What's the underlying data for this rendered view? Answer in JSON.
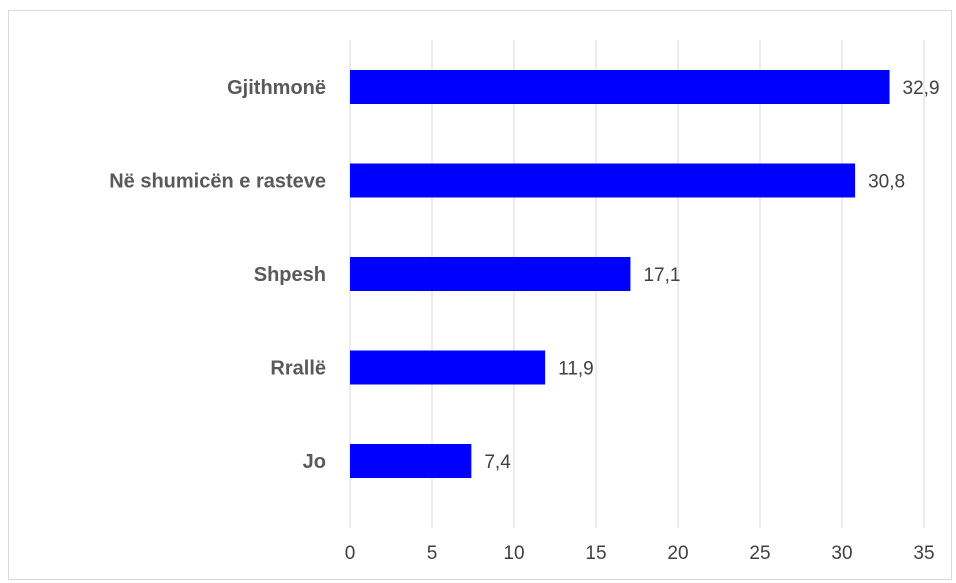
{
  "chart_data": {
    "type": "bar",
    "orientation": "horizontal",
    "categories": [
      "Gjithmonë",
      "Në shumicën e rasteve",
      "Shpesh",
      "Rrallë",
      "Jo"
    ],
    "values": [
      32.9,
      30.8,
      17.1,
      11.9,
      7.4
    ],
    "data_labels": [
      "32,9",
      "30,8",
      "17,1",
      "11,9",
      "7,4"
    ],
    "x_ticks": [
      0,
      5,
      10,
      15,
      20,
      25,
      30,
      35
    ],
    "xlim": [
      0,
      35
    ],
    "grid": "vertical",
    "bar_color": "#0000ff",
    "grid_color": "#d9d9d9"
  }
}
